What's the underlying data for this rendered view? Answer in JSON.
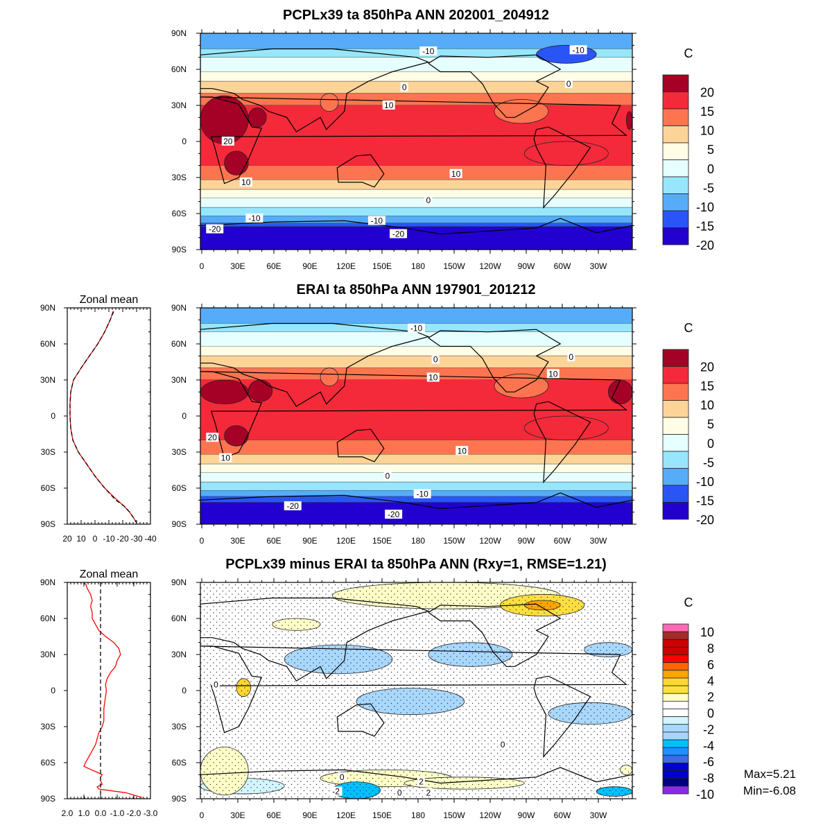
{
  "chart_data": [
    {
      "type": "heatmap",
      "id": "model",
      "title": "PCPLx39 ta 850hPa ANN 202001_204912",
      "units": "C",
      "colorbar_labels": [
        "20",
        "15",
        "10",
        "5",
        "0",
        "-5",
        "-10",
        "-15",
        "-20"
      ],
      "colorbar_colors": [
        "#a50026",
        "#f42a3a",
        "#fd7550",
        "#fdd498",
        "#fffde6",
        "#e6ffff",
        "#97e6fb",
        "#56acf8",
        "#2a55f6",
        "#2200d0"
      ],
      "lat_ticks": [
        "90N",
        "60N",
        "30N",
        "0",
        "30S",
        "60S",
        "90S"
      ],
      "lon_ticks": [
        "0",
        "30E",
        "60E",
        "90E",
        "120E",
        "150E",
        "180",
        "150W",
        "120W",
        "90W",
        "60W",
        "30W"
      ],
      "zonal_bands": [
        [
          90,
          77,
          7
        ],
        [
          77,
          70,
          6
        ],
        [
          70,
          58,
          5
        ],
        [
          58,
          50,
          4
        ],
        [
          50,
          40,
          3
        ],
        [
          40,
          30,
          2
        ],
        [
          30,
          -20,
          1
        ],
        [
          -20,
          -32,
          2
        ],
        [
          -32,
          -40,
          3
        ],
        [
          -40,
          -47,
          4
        ],
        [
          -47,
          -55,
          5
        ],
        [
          -55,
          -62,
          6
        ],
        [
          -62,
          -68,
          7
        ],
        [
          -68,
          -71,
          8
        ],
        [
          -71,
          -90,
          9
        ]
      ],
      "patches": [
        [
          0,
          40,
          8,
          28,
          0
        ],
        [
          20,
          40,
          -8,
          -28,
          0
        ],
        [
          355,
          360,
          25,
          10,
          0
        ],
        [
          40,
          55,
          28,
          12,
          0
        ],
        [
          245,
          290,
          35,
          15,
          2
        ],
        [
          270,
          340,
          0,
          -20,
          1
        ],
        [
          100,
          115,
          40,
          25,
          2
        ],
        [
          280,
          330,
          80,
          65,
          8
        ]
      ],
      "contour_labels": [
        {
          "text": "-10",
          "lon": 190,
          "lat": 75
        },
        {
          "text": "-10",
          "lon": 315,
          "lat": 76
        },
        {
          "text": "0",
          "lon": 170,
          "lat": 45
        },
        {
          "text": "0",
          "lon": 307,
          "lat": 48
        },
        {
          "text": "10",
          "lon": 157,
          "lat": 30
        },
        {
          "text": "20",
          "lon": 23,
          "lat": 0
        },
        {
          "text": "10",
          "lon": 38,
          "lat": -34
        },
        {
          "text": "10",
          "lon": 213,
          "lat": -27
        },
        {
          "text": "0",
          "lon": 190,
          "lat": -49
        },
        {
          "text": "-10",
          "lon": 45,
          "lat": -64
        },
        {
          "text": "-10",
          "lon": 147,
          "lat": -66
        },
        {
          "text": "-20",
          "lon": 12,
          "lat": -73
        },
        {
          "text": "-20",
          "lon": 165,
          "lat": -77
        }
      ]
    },
    {
      "type": "heatmap",
      "id": "obs",
      "title": "ERAI ta 850hPa ANN 197901_201212",
      "units": "C",
      "colorbar_labels": [
        "20",
        "15",
        "10",
        "5",
        "0",
        "-5",
        "-10",
        "-15",
        "-20"
      ],
      "colorbar_colors": [
        "#a50026",
        "#f42a3a",
        "#fd7550",
        "#fdd498",
        "#fffde6",
        "#e6ffff",
        "#97e6fb",
        "#56acf8",
        "#2a55f6",
        "#2200d0"
      ],
      "lat_ticks": [
        "90N",
        "60N",
        "30N",
        "0",
        "30S",
        "60S",
        "90S"
      ],
      "lon_ticks": [
        "0",
        "30E",
        "60E",
        "90E",
        "120E",
        "150E",
        "180",
        "150W",
        "120W",
        "90W",
        "60W",
        "30W"
      ],
      "zonal_bands": [
        [
          90,
          77,
          7
        ],
        [
          77,
          70,
          6
        ],
        [
          70,
          58,
          5
        ],
        [
          58,
          50,
          4
        ],
        [
          50,
          40,
          3
        ],
        [
          40,
          30,
          2
        ],
        [
          30,
          -20,
          1
        ],
        [
          -20,
          -32,
          2
        ],
        [
          -32,
          -40,
          3
        ],
        [
          -40,
          -47,
          4
        ],
        [
          -47,
          -55,
          5
        ],
        [
          -55,
          -62,
          6
        ],
        [
          -62,
          -67,
          7
        ],
        [
          -67,
          -72,
          8
        ],
        [
          -72,
          -90,
          9
        ]
      ],
      "patches": [
        [
          0,
          40,
          30,
          10,
          0
        ],
        [
          20,
          40,
          -8,
          -25,
          0
        ],
        [
          340,
          360,
          30,
          10,
          0
        ],
        [
          40,
          60,
          30,
          12,
          0
        ],
        [
          245,
          290,
          35,
          15,
          2
        ],
        [
          270,
          340,
          0,
          -20,
          1
        ],
        [
          100,
          115,
          40,
          25,
          2
        ]
      ],
      "contour_labels": [
        {
          "text": "-10",
          "lon": 180,
          "lat": 73
        },
        {
          "text": "0",
          "lon": 196,
          "lat": 47
        },
        {
          "text": "0",
          "lon": 309,
          "lat": 49
        },
        {
          "text": "10",
          "lon": 194,
          "lat": 32
        },
        {
          "text": "10",
          "lon": 294,
          "lat": 35
        },
        {
          "text": "20",
          "lon": 10,
          "lat": -18
        },
        {
          "text": "10",
          "lon": 21,
          "lat": -35
        },
        {
          "text": "10",
          "lon": 218,
          "lat": -29
        },
        {
          "text": "0",
          "lon": 156,
          "lat": -50
        },
        {
          "text": "-10",
          "lon": 185,
          "lat": -65
        },
        {
          "text": "-20",
          "lon": 77,
          "lat": -75
        },
        {
          "text": "-20",
          "lon": 161,
          "lat": -82
        }
      ]
    },
    {
      "type": "heatmap",
      "id": "diff",
      "title": "PCPLx39 minus ERAI ta 850hPa ANN (Rxy=1, RMSE=1.21)",
      "units": "C",
      "colorbar_labels": [
        "10",
        "8",
        "6",
        "4",
        "2",
        "0",
        "-2",
        "-4",
        "-6",
        "-8",
        "-10"
      ],
      "colorbar_colors": [
        "#ff69b4",
        "#a52a2a",
        "#cd0000",
        "#cd0000",
        "#ff0000",
        "#ff6600",
        "#ffa500",
        "#ffd733",
        "#ffdf40",
        "#ffffc8",
        "#ffffff",
        "#ffffff",
        "#d2f5ff",
        "#a9d8ff",
        "#a9d4ff",
        "#00bfff",
        "#1e90ff",
        "#4169e1",
        "#0000cd",
        "#0000cd",
        "#000080",
        "#8a2be2"
      ],
      "lat_ticks": [
        "90N",
        "60N",
        "30N",
        "0",
        "30S",
        "60S",
        "90S"
      ],
      "lon_ticks": [
        "0",
        "30E",
        "60E",
        "90E",
        "120E",
        "150E",
        "180",
        "150W",
        "120W",
        "90W",
        "60W",
        "30W"
      ],
      "stats": {
        "max": "Max=5.21",
        "min": "Min=-6.08"
      },
      "patches": [
        [
          110,
          300,
          90,
          68,
          9
        ],
        [
          250,
          320,
          80,
          62,
          8
        ],
        [
          270,
          300,
          75,
          67,
          6
        ],
        [
          70,
          160,
          38,
          14,
          13
        ],
        [
          190,
          260,
          40,
          20,
          13
        ],
        [
          130,
          220,
          2,
          -20,
          13
        ],
        [
          290,
          360,
          -10,
          -28,
          13
        ],
        [
          30,
          42,
          10,
          -5,
          7
        ],
        [
          320,
          360,
          40,
          28,
          13
        ],
        [
          0,
          70,
          -73,
          -86,
          12
        ],
        [
          100,
          210,
          -66,
          -80,
          9
        ],
        [
          170,
          270,
          -72,
          -82,
          9
        ],
        [
          110,
          150,
          -76,
          -90,
          15
        ],
        [
          330,
          360,
          -80,
          -88,
          15
        ],
        [
          60,
          100,
          60,
          50,
          9
        ],
        [
          0,
          40,
          -70,
          -64,
          9
        ],
        [
          350,
          360,
          -62,
          -70,
          9
        ]
      ],
      "contour_labels": [
        {
          "text": "0",
          "lon": 13,
          "lat": 5
        },
        {
          "text": "0",
          "lon": 252,
          "lat": -45
        },
        {
          "text": "0",
          "lon": 118,
          "lat": -72
        },
        {
          "text": "-2",
          "lon": 113,
          "lat": -84
        },
        {
          "text": "2",
          "lon": 184,
          "lat": -76
        },
        {
          "text": "2",
          "lon": 190,
          "lat": -85
        },
        {
          "text": "0",
          "lon": 166,
          "lat": -85
        }
      ]
    },
    {
      "type": "line",
      "id": "zonal_mean_abs",
      "title": "Zonal mean",
      "x_ticks": [
        "20",
        "10",
        "0",
        "-10",
        "-20",
        "-30",
        "-40"
      ],
      "xlim": [
        20,
        -40
      ],
      "lat_ticks": [
        "90N",
        "60N",
        "30N",
        "0",
        "30S",
        "60S",
        "90S"
      ],
      "lat": [
        87,
        80,
        70,
        60,
        50,
        40,
        30,
        20,
        10,
        0,
        -10,
        -20,
        -30,
        -40,
        -50,
        -60,
        -70,
        -75,
        -80,
        -85,
        -89
      ],
      "series": [
        {
          "name": "model",
          "color": "#ff0000",
          "dash": "none",
          "values": [
            -13,
            -11,
            -7,
            -2,
            4,
            10,
            15.5,
            17.5,
            18,
            18,
            17.5,
            16,
            12,
            6,
            0,
            -7,
            -16,
            -21,
            -25,
            -28,
            -30
          ]
        },
        {
          "name": "obs",
          "color": "#000000",
          "dash": "6,4",
          "values": [
            -13.5,
            -11,
            -7,
            -2,
            4,
            10,
            15.5,
            17.5,
            18,
            18,
            17.5,
            16,
            12,
            6,
            0,
            -7,
            -15,
            -21,
            -25,
            -28,
            -30
          ]
        }
      ]
    },
    {
      "type": "line",
      "id": "zonal_mean_diff",
      "title": "Zonal mean",
      "x_ticks": [
        "2.0",
        "1.0",
        "0.0",
        "-1.0",
        "-2.0",
        "-3.0"
      ],
      "xlim": [
        2,
        -3
      ],
      "lat_ticks": [
        "90N",
        "60N",
        "30N",
        "0",
        "30S",
        "60S",
        "90S"
      ],
      "lat": [
        89,
        85,
        80,
        75,
        70,
        65,
        60,
        55,
        50,
        45,
        40,
        35,
        30,
        25,
        20,
        15,
        10,
        5,
        0,
        -5,
        -10,
        -15,
        -20,
        -25,
        -30,
        -35,
        -40,
        -45,
        -50,
        -55,
        -60,
        -63,
        -65,
        -68,
        -70,
        -72,
        -75,
        -78,
        -80,
        -82,
        -85,
        -89
      ],
      "series": [
        {
          "name": "difference",
          "color": "#ff0000",
          "dash": "none",
          "values": [
            0.9,
            0.8,
            0.6,
            0.5,
            0.6,
            0.5,
            0.5,
            0.3,
            0.1,
            -0.3,
            -0.8,
            -1.1,
            -1.2,
            -1.0,
            -0.9,
            -0.6,
            -0.4,
            -0.3,
            -0.35,
            -0.3,
            -0.25,
            -0.2,
            -0.2,
            -0.2,
            -0.1,
            0.1,
            0.2,
            0.3,
            0.5,
            0.7,
            0.9,
            1.0,
            0.7,
            0.2,
            -0.1,
            0.0,
            0.0,
            -0.1,
            0.2,
            0.1,
            -1.5,
            -2.5
          ]
        },
        {
          "name": "zero",
          "color": "#000000",
          "dash": "6,4",
          "values": [
            0,
            0
          ]
        }
      ]
    }
  ]
}
